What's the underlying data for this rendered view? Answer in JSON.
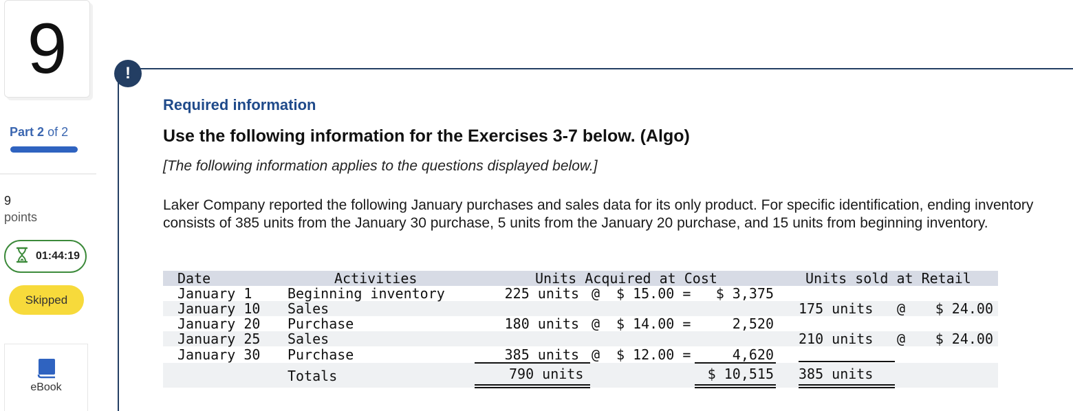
{
  "sidebar": {
    "question_number": "9",
    "part_word": "Part",
    "part_current": "2",
    "part_of": "of 2",
    "points_value": "9",
    "points_label": "points",
    "timer": "01:44:19",
    "status_button": "Skipped",
    "ebook_label": "eBook",
    "colors": {
      "part_bar": "#2f63c0",
      "timer_border": "#3c8a3a",
      "skipped_bg": "#f7da3b",
      "alert": "#233e63"
    }
  },
  "main": {
    "alert_icon": "!",
    "required_label": "Required information",
    "heading": "Use the following information for the Exercises 3-7 below. (Algo)",
    "subnote": "[The following information applies to the questions displayed below.]",
    "paragraph": "Laker Company reported the following January purchases and sales data for its only product. For specific identification, ending inventory consists of 385 units from the January 30 purchase, 5 units from the January 20 purchase, and 15 units from beginning inventory."
  },
  "table": {
    "headers": {
      "date": "Date",
      "activities": "Activities",
      "acquired": "Units Acquired at Cost",
      "sold": "Units sold at Retail"
    },
    "rows": [
      {
        "date": "January 1",
        "activity": "Beginning inventory",
        "acq_units": "225 units",
        "acq_at": "@",
        "acq_price": "$ 15.00 =",
        "acq_total": "$ 3,375",
        "sold_units": "",
        "sold_at": "",
        "sold_price": ""
      },
      {
        "date": "January 10",
        "activity": "Sales",
        "acq_units": "",
        "acq_at": "",
        "acq_price": "",
        "acq_total": "",
        "sold_units": "175 units",
        "sold_at": "@",
        "sold_price": "$ 24.00"
      },
      {
        "date": "January 20",
        "activity": "Purchase",
        "acq_units": "180 units",
        "acq_at": "@",
        "acq_price": "$ 14.00 =",
        "acq_total": "2,520",
        "sold_units": "",
        "sold_at": "",
        "sold_price": ""
      },
      {
        "date": "January 25",
        "activity": "Sales",
        "acq_units": "",
        "acq_at": "",
        "acq_price": "",
        "acq_total": "",
        "sold_units": "210 units",
        "sold_at": "@",
        "sold_price": "$ 24.00"
      },
      {
        "date": "January 30",
        "activity": "Purchase",
        "acq_units": "385 units",
        "acq_at": "@",
        "acq_price": "$ 12.00 =",
        "acq_total": "4,620",
        "sold_units": "",
        "sold_at": "",
        "sold_price": ""
      }
    ],
    "totals": {
      "label": "Totals",
      "acq_units": "790 units",
      "acq_total": "$ 10,515",
      "sold_units": "385 units"
    }
  }
}
